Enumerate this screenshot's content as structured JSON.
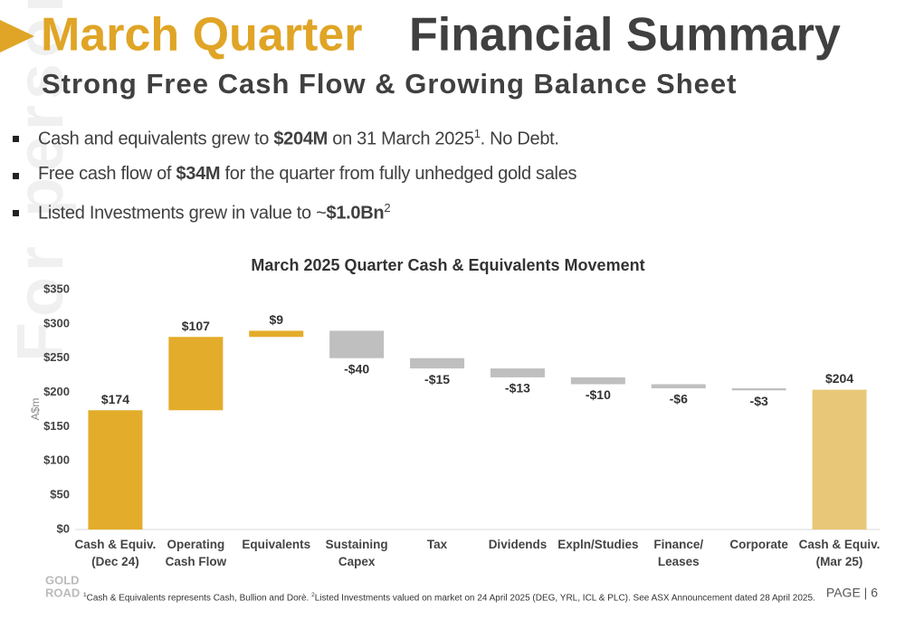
{
  "header": {
    "title_accent": "March Quarter",
    "title_main": "Financial Summary",
    "subtitle": "Strong Free Cash Flow & Growing Balance Sheet"
  },
  "bullets": [
    [
      {
        "text": "Cash and equivalents grew to ",
        "style": "normal"
      },
      {
        "text": "$204M",
        "style": "bold"
      },
      {
        "text": " on 31 March 2025",
        "style": "normal"
      },
      {
        "text": "1",
        "style": "sup"
      },
      {
        "text": ".  No Debt.",
        "style": "normal"
      }
    ],
    [
      {
        "text": "Free cash flow of ",
        "style": "normal"
      },
      {
        "text": "$34M",
        "style": "bold"
      },
      {
        "text": " for the quarter from fully unhedged gold sales",
        "style": "normal"
      }
    ],
    [
      {
        "text": "Listed Investments grew in value to ~",
        "style": "normal"
      },
      {
        "text": "$1.0Bn",
        "style": "bold"
      },
      {
        "text": "2",
        "style": "sup"
      }
    ]
  ],
  "chart_data": {
    "type": "waterfall",
    "title": "March 2025 Quarter Cash & Equivalents Movement",
    "y_label": "A$m",
    "categories": [
      "Cash & Equiv.\n(Dec 24)",
      "Operating\nCash Flow",
      "Equivalents",
      "Sustaining\nCapex",
      "Tax",
      "Dividends",
      "Expln/Studies",
      "Finance/\nLeases",
      "Corporate",
      "Cash & Equiv.\n(Mar 25)"
    ],
    "values": [
      174,
      107,
      9,
      -40,
      -15,
      -13,
      -10,
      -6,
      -3,
      204
    ],
    "value_labels": [
      "$174",
      "$107",
      "$9",
      "-$40",
      "-$15",
      "-$13",
      "-$10",
      "-$6",
      "-$3",
      "$204"
    ],
    "is_total": [
      true,
      false,
      false,
      false,
      false,
      false,
      false,
      false,
      false,
      true
    ],
    "colors": [
      "#E3AC2A",
      "#E3AC2A",
      "#E3AC2A",
      "#BFBFBF",
      "#BFBFBF",
      "#BFBFBF",
      "#BFBFBF",
      "#BFBFBF",
      "#BFBFBF",
      "#E8C878"
    ],
    "ylim": [
      0,
      350
    ],
    "yticks": [
      {
        "value": 0,
        "label": "$0"
      },
      {
        "value": 50,
        "label": "$50"
      },
      {
        "value": 100,
        "label": "$100"
      },
      {
        "value": 150,
        "label": "$150"
      },
      {
        "value": 200,
        "label": "$200"
      },
      {
        "value": 250,
        "label": "$250"
      },
      {
        "value": 300,
        "label": "$300"
      },
      {
        "value": 350,
        "label": "$350"
      }
    ]
  },
  "footnote": [
    {
      "text": "1",
      "style": "sup"
    },
    {
      "text": "Cash & Equivalents represents Cash, Bullion and Dorè. ",
      "style": "normal"
    },
    {
      "text": "2",
      "style": "sup"
    },
    {
      "text": "Listed Investments valued on market on 24 April 2025 (DEG, YRL, ICL & PLC). See ASX Announcement dated 28 April 2025.",
      "style": "normal"
    }
  ],
  "page_label": "PAGE | 6",
  "watermark": "For personal use only",
  "logo": {
    "line1": "GOLD",
    "line2": "ROAD"
  }
}
